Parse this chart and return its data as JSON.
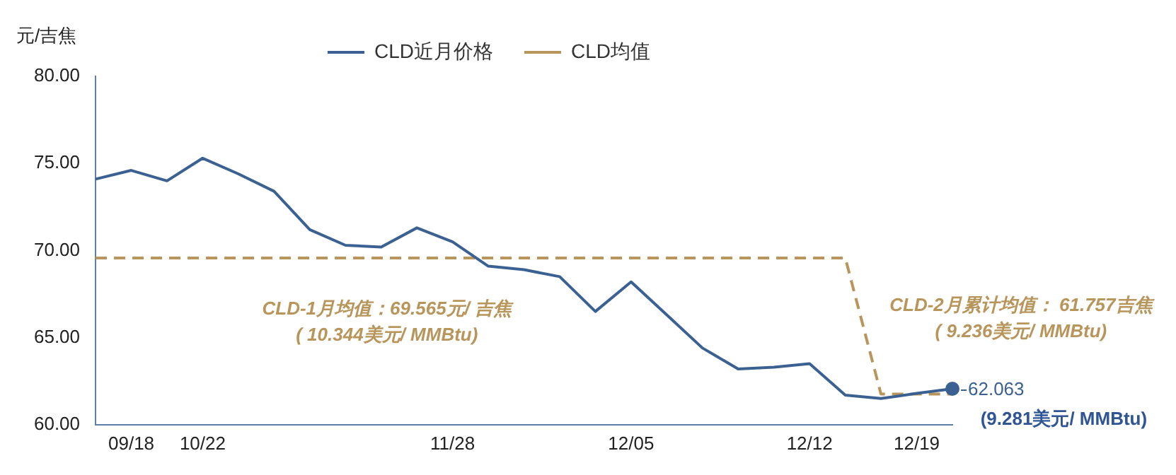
{
  "chart_data": {
    "type": "line",
    "ylabel": "元/吉焦",
    "categories": [
      null,
      "09/18",
      null,
      "10/22",
      null,
      null,
      null,
      null,
      null,
      null,
      "11/28",
      null,
      null,
      null,
      null,
      "12/05",
      null,
      null,
      null,
      null,
      "12/12",
      null,
      null,
      "12/19",
      null
    ],
    "series": [
      {
        "name": "CLD近月价格",
        "color": "#3b6193",
        "line_style": "solid",
        "values": [
          74.1,
          74.6,
          74.0,
          75.3,
          74.4,
          73.4,
          71.2,
          70.3,
          70.2,
          71.3,
          70.5,
          69.1,
          68.9,
          68.5,
          66.5,
          68.2,
          66.3,
          64.4,
          63.2,
          63.3,
          63.5,
          61.7,
          61.5,
          61.8,
          62.063
        ],
        "value_labels": [
          null,
          null,
          null,
          null,
          null,
          null,
          null,
          null,
          null,
          null,
          null,
          null,
          null,
          null,
          null,
          null,
          null,
          null,
          null,
          null,
          null,
          null,
          null,
          null,
          "62.063"
        ]
      },
      {
        "name": "CLD均值",
        "color": "#b8955a",
        "line_style": "dashed",
        "values": [
          69.565,
          69.565,
          69.565,
          69.565,
          69.565,
          69.565,
          69.565,
          69.565,
          69.565,
          69.565,
          69.565,
          69.565,
          69.565,
          69.565,
          69.565,
          69.565,
          69.565,
          69.565,
          69.565,
          69.565,
          69.565,
          69.565,
          61.757,
          61.757,
          61.757
        ]
      }
    ],
    "ylim": [
      60,
      80
    ],
    "yticks": [
      {
        "value": 60,
        "label": "60.00"
      },
      {
        "value": 65,
        "label": "65.00"
      },
      {
        "value": 70,
        "label": "70.00"
      },
      {
        "value": 75,
        "label": "75.00"
      },
      {
        "value": 80,
        "label": "80.00"
      }
    ],
    "grid": false,
    "legend": "top",
    "marker": "none",
    "annotations": [
      "CLD-1月均值：69.565元/ 吉焦",
      "( 10.344美元/ MMBtu)",
      "CLD-2月累计均值： 61.757吉焦",
      "( 9.236美元/ MMBtu)",
      "(9.281美元/ MMBtu)"
    ]
  }
}
